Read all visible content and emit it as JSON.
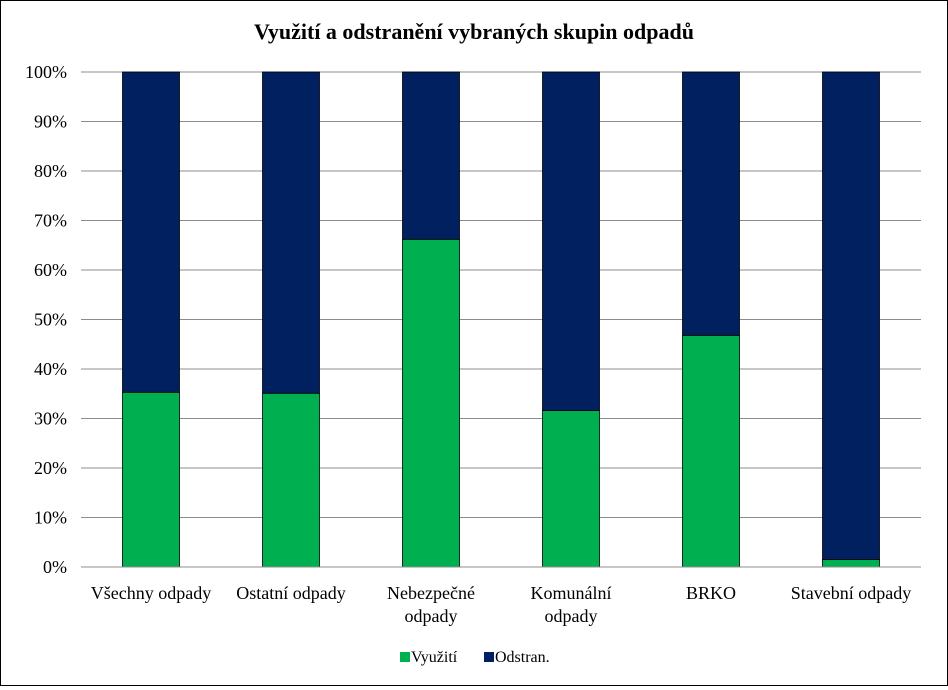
{
  "chart_data": {
    "type": "bar",
    "stacked": "percent",
    "title": "Využití a odstranění vybraných skupin odpadů",
    "xlabel": "",
    "ylabel": "",
    "ylim": [
      0,
      100
    ],
    "yticks": [
      "0%",
      "10%",
      "20%",
      "30%",
      "40%",
      "50%",
      "60%",
      "70%",
      "80%",
      "90%",
      "100%"
    ],
    "categories": [
      [
        "Všechny odpady"
      ],
      [
        "Ostatní odpady"
      ],
      [
        "Nebezpečné",
        "odpady"
      ],
      [
        "Komunální",
        "odpady"
      ],
      [
        "BRKO"
      ],
      [
        "Stavební odpady"
      ]
    ],
    "series": [
      {
        "name": "Využití",
        "color": "#00b050",
        "values": [
          35.3,
          35.1,
          66.2,
          31.6,
          46.8,
          1.5
        ]
      },
      {
        "name": "Odstran.",
        "color": "#002060",
        "values": [
          64.7,
          64.9,
          33.8,
          68.4,
          53.2,
          98.5
        ]
      }
    ],
    "grid": true,
    "legend": "bottom"
  }
}
